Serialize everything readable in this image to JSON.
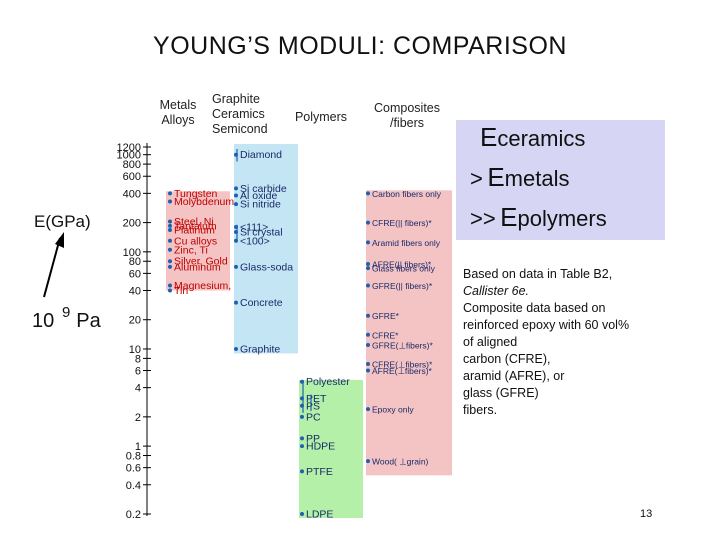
{
  "slide": {
    "title": "YOUNG’S MODULI:  COMPARISON",
    "page_number": "13"
  },
  "note": {
    "line1": "Based on data in Table B2,",
    "line2": "Callister 6e.",
    "line3": "Composite data based on",
    "line4": "reinforced epoxy with 60 vol%",
    "line5": "of aligned",
    "line6": "carbon (CFRE),",
    "line7": "aramid (AFRE), or",
    "line8": "glass (GFRE)",
    "line9": "fibers."
  },
  "comparison_box": {
    "e1": "E",
    "s1": "ceramics",
    "gt": ">",
    "e2": "E",
    "s2": "metals",
    "gg": ">>",
    "e3": "E",
    "s3": "polymers"
  },
  "colors": {
    "metals": "#f4c4c4",
    "graphite_ceramics_semicond": "#c4e6f4",
    "polymers": "#b4f0a8",
    "composites": "#f4c4c4",
    "comparison_box": "#d6d6f4",
    "marker": "#2060b0"
  },
  "chart_data": {
    "type": "range",
    "scale": "log",
    "ylabel": "E(GPa)",
    "unit": "10",
    "unit_exp": "9",
    "unit_suffix": "Pa",
    "ylim": [
      0.2,
      1200
    ],
    "ticks": [
      {
        "value": 1200,
        "label": "1200"
      },
      {
        "value": 1000,
        "label": "1000"
      },
      {
        "value": 800,
        "label": "800"
      },
      {
        "value": 600,
        "label": "600"
      },
      {
        "value": 400,
        "label": "400"
      },
      {
        "value": 200,
        "label": "200"
      },
      {
        "value": 100,
        "label": "100"
      },
      {
        "value": 80,
        "label": "80"
      },
      {
        "value": 60,
        "label": "60"
      },
      {
        "value": 40,
        "label": "40"
      },
      {
        "value": 20,
        "label": "20"
      },
      {
        "value": 10,
        "label": "10"
      },
      {
        "value": 8,
        "label": "8"
      },
      {
        "value": 6,
        "label": "6"
      },
      {
        "value": 4,
        "label": "4"
      },
      {
        "value": 2,
        "label": "2"
      },
      {
        "value": 1,
        "label": "1"
      },
      {
        "value": 0.8,
        "label": "0.8"
      },
      {
        "value": 0.6,
        "label": "0.6"
      },
      {
        "value": 0.4,
        "label": "0.4"
      },
      {
        "value": 0.2,
        "label": "0.2"
      }
    ],
    "groups": [
      {
        "name": "Metals Alloys",
        "header_lines": [
          "Metals",
          "Alloys"
        ],
        "range": [
          40,
          420
        ],
        "color": "#f4c4c4",
        "items": [
          {
            "label": "Tungsten",
            "value": 400
          },
          {
            "label": "Molybdenum",
            "value": 330
          },
          {
            "label": "Steel, Ni",
            "value": 205
          },
          {
            "label": "Tantalum",
            "value": 185
          },
          {
            "label": "Platinum",
            "value": 168
          },
          {
            "label": "Cu alloys",
            "value": 130
          },
          {
            "label": "Zinc, Ti",
            "value": 105
          },
          {
            "label": "Silver, Gold",
            "value": 80
          },
          {
            "label": "Aluminum",
            "value": 70
          },
          {
            "label": "Magnesium,",
            "value": 45
          },
          {
            "label": "Tin",
            "value": 40
          }
        ]
      },
      {
        "name": "Graphite Ceramics Semicond",
        "header_lines": [
          "Graphite",
          "Ceramics",
          "Semicond"
        ],
        "range": [
          9,
          1200
        ],
        "color": "#c4e6f4",
        "items": [
          {
            "label": "Diamond",
            "value": 1000
          },
          {
            "label": "Si carbide",
            "value": 450
          },
          {
            "label": "Al oxide",
            "value": 380
          },
          {
            "label": "Si nitride",
            "value": 310
          },
          {
            "label": "<111>",
            "value": 180
          },
          {
            "label": "Si crystal",
            "value": 160
          },
          {
            "label": "<100>",
            "value": 130
          },
          {
            "label": "Glass-soda",
            "value": 70
          },
          {
            "label": "Concrete",
            "value": 30
          },
          {
            "label": "Graphite",
            "value": 10
          }
        ]
      },
      {
        "name": "Polymers",
        "header_lines": [
          "Polymers"
        ],
        "range": [
          0.2,
          4.8
        ],
        "color": "#b4f0a8",
        "items": [
          {
            "label": "Polyester",
            "value": 4.6
          },
          {
            "label": "PET",
            "value": 3.1
          },
          {
            "label": "PS",
            "value": 2.6
          },
          {
            "label": "PC",
            "value": 2.0
          },
          {
            "label": "PP",
            "value": 1.2
          },
          {
            "label": "HDPE",
            "value": 1.0
          },
          {
            "label": "PTFE",
            "value": 0.55
          },
          {
            "label": "LDPE",
            "value": 0.2
          }
        ]
      },
      {
        "name": "Composites /fibers",
        "header_lines": [
          "Composites",
          "/fibers"
        ],
        "range": [
          0.5,
          430
        ],
        "color": "#f4c4c4",
        "items": [
          {
            "label": "Carbon fibers only",
            "value": 400
          },
          {
            "label": "CFRE(|| fibers)*",
            "value": 200
          },
          {
            "label": "Aramid fibers only",
            "value": 125
          },
          {
            "label": "AFRE(|| fibers)*",
            "value": 75
          },
          {
            "label": "Glass fibers only",
            "value": 68
          },
          {
            "label": "GFRE(|| fibers)*",
            "value": 45
          },
          {
            "label": "GFRE*",
            "value": 22
          },
          {
            "label": "CFRE*",
            "value": 14
          },
          {
            "label": "GFRE(⊥fibers)*",
            "value": 11
          },
          {
            "label": "CFRE(⊥fibers)*",
            "value": 7
          },
          {
            "label": "AFRE(⊥fibers)*",
            "value": 6
          },
          {
            "label": "Epoxy only",
            "value": 2.4
          },
          {
            "label": "Wood( ⊥grain)",
            "value": 0.7
          }
        ]
      }
    ]
  }
}
